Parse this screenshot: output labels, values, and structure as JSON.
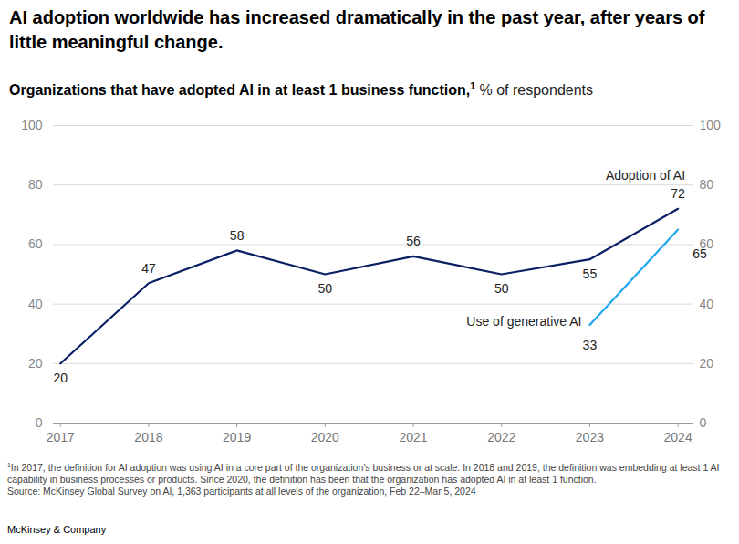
{
  "chart_data": {
    "type": "line",
    "title": "AI adoption worldwide has increased dramatically in the past year, after years of little meaningful change.",
    "subtitle": {
      "text": "Organizations that have adopted AI in at least 1 business function,",
      "footnote_ref": "1",
      "unit": "% of respondents"
    },
    "x": [
      2017,
      2018,
      2019,
      2020,
      2021,
      2022,
      2023,
      2024
    ],
    "xlim": [
      2016.92,
      2024.18
    ],
    "xticks": [
      2017,
      2018,
      2019,
      2020,
      2021,
      2022,
      2023,
      2024
    ],
    "ylim": [
      0,
      100
    ],
    "yticks": [
      0,
      20,
      40,
      60,
      80,
      100
    ],
    "grid": true,
    "data_labels": true,
    "series": [
      {
        "name": "Adoption of AI",
        "color": "#0b1f65",
        "values": [
          20,
          47,
          58,
          50,
          56,
          50,
          55,
          72
        ]
      },
      {
        "name": "Use of generative AI",
        "color": "#1ea6ee",
        "values": [
          null,
          null,
          null,
          null,
          null,
          null,
          33,
          65
        ]
      }
    ],
    "footnote": {
      "marker": "1",
      "text": "In 2017, the definition for AI adoption was using AI in a core part of the organization’s business or at scale. In 2018 and 2019, the definition was embedding at least 1 AI capability in business processes or products. Since 2020, the definition has been that the organization has adopted AI in at least 1 function."
    },
    "source": "Source: McKinsey Global Survey on AI, 1,363 participants at all levels of the organization, Feb 22–Mar 5, 2024",
    "brand": "McKinsey & Company"
  }
}
